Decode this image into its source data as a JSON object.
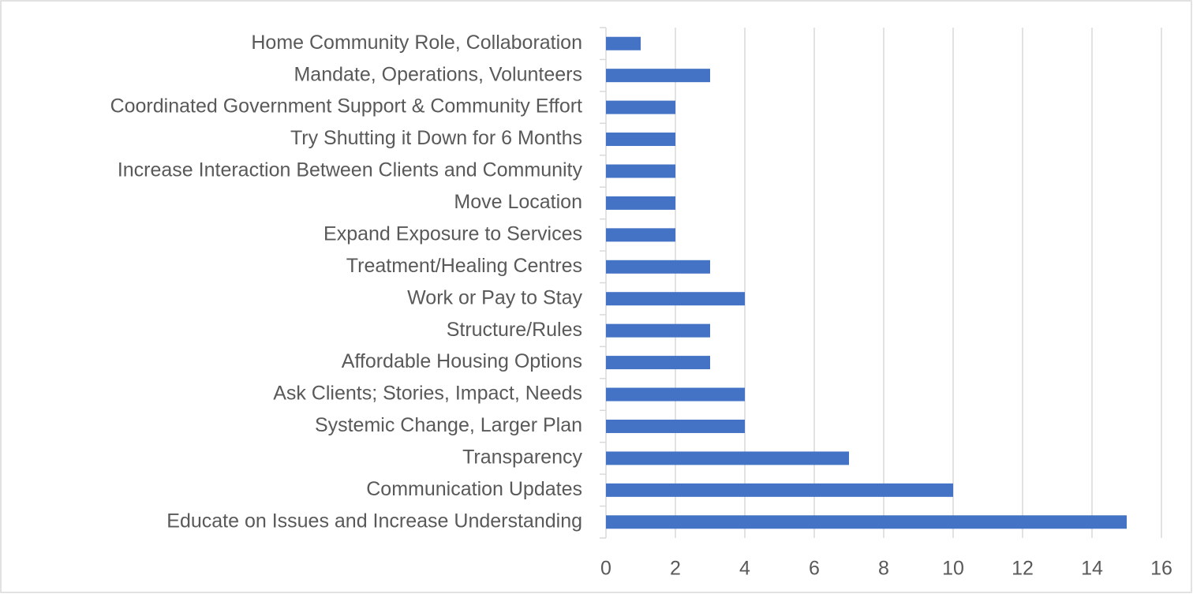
{
  "chart_data": {
    "type": "bar",
    "orientation": "horizontal",
    "categories": [
      "Home Community Role, Collaboration",
      "Mandate, Operations, Volunteers",
      "Coordinated Government Support & Community Effort",
      "Try Shutting it Down for 6 Months",
      "Increase Interaction Between Clients and Community",
      "Move Location",
      "Expand Exposure to Services",
      "Treatment/Healing Centres",
      "Work or Pay to Stay",
      "Structure/Rules",
      "Affordable Housing Options",
      "Ask Clients; Stories, Impact, Needs",
      "Systemic Change, Larger Plan",
      "Transparency",
      "Communication Updates",
      "Educate on Issues and Increase Understanding"
    ],
    "values": [
      1,
      3,
      2,
      2,
      2,
      2,
      2,
      3,
      4,
      3,
      3,
      4,
      4,
      7,
      10,
      15
    ],
    "color": "#4472c4",
    "xlim": [
      0,
      16
    ],
    "xticks": [
      0,
      2,
      4,
      6,
      8,
      10,
      12,
      14,
      16
    ],
    "grid": true
  }
}
